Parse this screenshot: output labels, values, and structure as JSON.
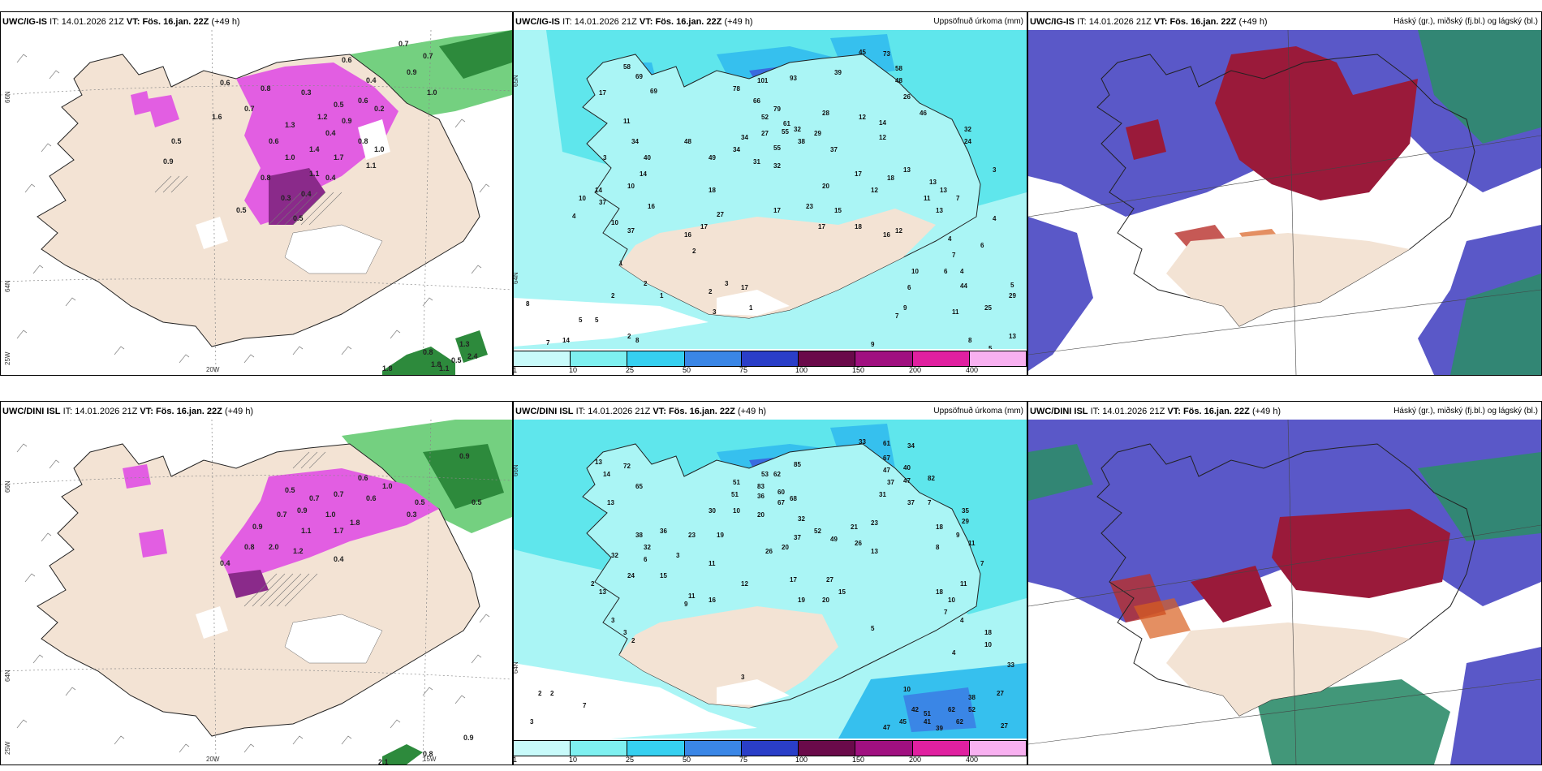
{
  "panels": [
    {
      "id": "tl",
      "model": "UWC/IG-IS",
      "it_label": "IT:",
      "it_value": "14.01.2026 21Z",
      "vt_label": "VT:",
      "vt_value": "Fös. 16.jan. 22Z",
      "lead": "(+49 h)",
      "right_title": "",
      "axis_labels": [
        "66N",
        "64N",
        "25W",
        "20W"
      ],
      "values": [
        "0.7",
        "0.7",
        "0.6",
        "0.9",
        "1.0",
        "0.4",
        "0.6",
        "0.6",
        "0.8",
        "0.3",
        "0.5",
        "0.2",
        "1.2",
        "0.9",
        "1.3",
        "0.4",
        "0.6",
        "1.4",
        "0.8",
        "1.0",
        "1.1",
        "1.7",
        "0.8",
        "0.3",
        "0.4",
        "0.5",
        "1.6",
        "0.7",
        "0.4",
        "1.1",
        "1.0",
        "0.5",
        "0.9",
        "1.3",
        "0.5",
        "2.4",
        "1.8",
        "1.1",
        "0.8",
        "1.8",
        "0.5"
      ]
    },
    {
      "id": "tm",
      "model": "UWC/IG-IS",
      "it_label": "IT:",
      "it_value": "14.01.2026 21Z",
      "vt_label": "VT:",
      "vt_value": "Fös. 16.jan. 22Z",
      "lead": "(+49 h)",
      "right_title": "Uppsöfnuð úrkoma (mm)",
      "axis_labels": [
        "65N",
        "64N"
      ],
      "values": [
        "45",
        "73",
        "58",
        "48",
        "69",
        "69",
        "58",
        "78",
        "101",
        "93",
        "39",
        "26",
        "66",
        "17",
        "79",
        "52",
        "28",
        "55",
        "46",
        "38",
        "34",
        "27",
        "61",
        "12",
        "14",
        "32",
        "11",
        "34",
        "48",
        "32",
        "29",
        "55",
        "34",
        "37",
        "12",
        "24",
        "3",
        "40",
        "49",
        "31",
        "32",
        "18",
        "13",
        "3",
        "10",
        "14",
        "14",
        "17",
        "20",
        "12",
        "13",
        "13",
        "11",
        "10",
        "37",
        "16",
        "18",
        "17",
        "23",
        "15",
        "13",
        "7",
        "4",
        "10",
        "37",
        "16",
        "17",
        "27",
        "17",
        "18",
        "16",
        "12",
        "2",
        "1",
        "5",
        "8",
        "14",
        "2",
        "1",
        "5",
        "8",
        "7",
        "6",
        "4",
        "4",
        "6",
        "5",
        "29",
        "25",
        "44",
        "17",
        "1",
        "3",
        "2",
        "3",
        "6",
        "2",
        "4",
        "2",
        "7",
        "14",
        "11",
        "5",
        "8",
        "9",
        "9",
        "10",
        "13",
        "7"
      ]
    },
    {
      "id": "tr",
      "model": "UWC/IG-IS",
      "it_label": "IT:",
      "it_value": "14.01.2026 21Z",
      "vt_label": "VT:",
      "vt_value": "Fös. 16.jan. 22Z",
      "lead": "(+49 h)",
      "right_title": "Háský (gr.), miðský (fj.bl.) og lágský (bl.)",
      "axis_labels": [],
      "values": []
    },
    {
      "id": "bl",
      "model": "UWC/DINI ISL",
      "it_label": "IT:",
      "it_value": "14.01.2026 21Z",
      "vt_label": "VT:",
      "vt_value": "Fös. 16.jan. 22Z",
      "lead": "(+49 h)",
      "right_title": "",
      "axis_labels": [
        "66N",
        "64N",
        "25W",
        "20W",
        "15W"
      ],
      "values": [
        "0.9",
        "0.5",
        "0.6",
        "1.0",
        "0.7",
        "0.7",
        "0.5",
        "0.6",
        "0.3",
        "1.1",
        "1.0",
        "1.7",
        "2.0",
        "1.8",
        "1.2",
        "0.4",
        "0.8",
        "0.5",
        "0.7",
        "0.9",
        "0.4",
        "0.9",
        "2.1",
        "0.8",
        "0.9"
      ]
    },
    {
      "id": "bm",
      "model": "UWC/DINI ISL",
      "it_label": "IT:",
      "it_value": "14.01.2026 21Z",
      "vt_label": "VT:",
      "vt_value": "Fös. 16.jan. 22Z",
      "lead": "(+49 h)",
      "right_title": "Uppsöfnuð úrkoma (mm)",
      "axis_labels": [
        "66N",
        "64N"
      ],
      "values": [
        "33",
        "61",
        "34",
        "72",
        "85",
        "67",
        "51",
        "40",
        "53",
        "14",
        "13",
        "65",
        "47",
        "37",
        "62",
        "83",
        "36",
        "60",
        "47",
        "67",
        "37",
        "7",
        "82",
        "68",
        "31",
        "13",
        "51",
        "10",
        "30",
        "20",
        "32",
        "52",
        "49",
        "21",
        "23",
        "35",
        "29",
        "36",
        "37",
        "23",
        "18",
        "38",
        "20",
        "19",
        "26",
        "13",
        "32",
        "26",
        "9",
        "8",
        "32",
        "6",
        "3",
        "24",
        "11",
        "27",
        "17",
        "2",
        "7",
        "13",
        "11",
        "12",
        "19",
        "15",
        "20",
        "15",
        "18",
        "3",
        "3",
        "11",
        "16",
        "11",
        "9",
        "10",
        "4",
        "2",
        "7",
        "5",
        "42",
        "52",
        "62",
        "27",
        "27",
        "38",
        "33",
        "2",
        "2",
        "7",
        "3",
        "41",
        "45",
        "39",
        "10",
        "18",
        "10",
        "4",
        "47",
        "51",
        "62",
        "3"
      ]
    },
    {
      "id": "br",
      "model": "UWC/DINI ISL",
      "it_label": "IT:",
      "it_value": "14.01.2026 21Z",
      "vt_label": "VT:",
      "vt_value": "Fös. 16.jan. 22Z",
      "lead": "(+49 h)",
      "right_title": "Háský (gr.), miðský (fj.bl.) og lágský (bl.)",
      "axis_labels": [],
      "values": []
    }
  ],
  "colorbar": {
    "ticks": [
      "1",
      "10",
      "25",
      "50",
      "75",
      "100",
      "150",
      "200",
      "400"
    ],
    "colors": [
      "#c8fafa",
      "#7ef0f0",
      "#36d0f0",
      "#3a86e6",
      "#2a3ec8",
      "#6a0a4a",
      "#a01080",
      "#e020a0",
      "#f8b0f0"
    ]
  },
  "colors": {
    "land": "#f3e3d4",
    "sea_precip": "#aaf5f5",
    "snow": "#e25ee2",
    "snow_dark": "#8a2a8a",
    "green": "#5cc86a",
    "cloud_high": "#2e8c6a",
    "cloud_mid": "#9a1a3a",
    "cloud_low": "#5a58c8"
  }
}
